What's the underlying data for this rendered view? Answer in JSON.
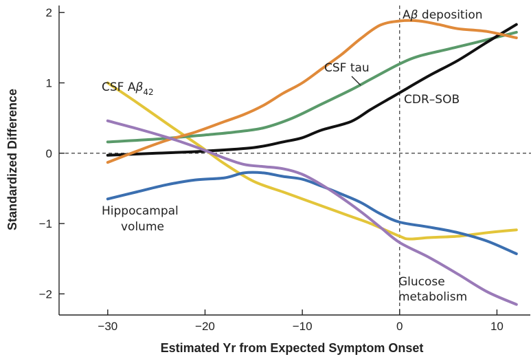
{
  "chart_data": {
    "type": "line",
    "title": "",
    "xlabel": "Estimated Yr from Expected Symptom Onset",
    "ylabel": "Standardized Difference",
    "xlim": [
      -35,
      13.5
    ],
    "ylim": [
      -2.3,
      2.1
    ],
    "xticks": [
      -30,
      -20,
      -10,
      0,
      10
    ],
    "xtick_labels": [
      "−30",
      "−20",
      "−10",
      "0",
      "10"
    ],
    "yticks": [
      2,
      1,
      0,
      -1,
      -2
    ],
    "ytick_labels": [
      "2",
      "1",
      "0",
      "−1",
      "−2"
    ],
    "reference_lines": {
      "horizontal_y": 0,
      "vertical_x": 0,
      "style": "dashed"
    },
    "grid": false,
    "series": [
      {
        "name": "CSF Aβ42",
        "color": "#e3c53a",
        "x": [
          -30,
          -27,
          -24,
          -22,
          -20,
          -18,
          -15,
          -12,
          -10,
          -8,
          -5,
          -3,
          0,
          1,
          3,
          6,
          9,
          12
        ],
        "y": [
          1.0,
          0.72,
          0.43,
          0.24,
          0.05,
          -0.15,
          -0.4,
          -0.55,
          -0.65,
          -0.75,
          -0.9,
          -1.0,
          -1.18,
          -1.22,
          -1.2,
          -1.18,
          -1.13,
          -1.09
        ]
      },
      {
        "name": "CSF tau",
        "color": "#5a9a6a",
        "x": [
          -30,
          -25,
          -20,
          -17,
          -14,
          -11,
          -8,
          -5,
          -3,
          0,
          2,
          5,
          8,
          12
        ],
        "y": [
          0.16,
          0.2,
          0.26,
          0.3,
          0.36,
          0.5,
          0.7,
          0.9,
          1.05,
          1.27,
          1.38,
          1.48,
          1.58,
          1.72
        ]
      },
      {
        "name": "CDR–SOB",
        "color": "#111111",
        "x": [
          -30,
          -25,
          -20,
          -15,
          -12,
          -10,
          -8,
          -5,
          -3,
          -1,
          0,
          3,
          6,
          9,
          12
        ],
        "y": [
          -0.03,
          0.0,
          0.03,
          0.08,
          0.16,
          0.22,
          0.33,
          0.45,
          0.62,
          0.78,
          0.86,
          1.1,
          1.32,
          1.58,
          1.83
        ]
      },
      {
        "name": "Aβ deposition",
        "color": "#e08a3a",
        "x": [
          -30,
          -27,
          -24,
          -21,
          -18,
          -16,
          -14,
          -12,
          -10,
          -8,
          -6,
          -4,
          -2,
          0,
          2,
          4,
          6,
          9,
          12
        ],
        "y": [
          -0.13,
          0.03,
          0.18,
          0.3,
          0.45,
          0.55,
          0.68,
          0.85,
          1.0,
          1.2,
          1.4,
          1.63,
          1.82,
          1.88,
          1.88,
          1.83,
          1.77,
          1.73,
          1.64
        ]
      },
      {
        "name": "Hippocampal volume",
        "color": "#3b6fb0",
        "x": [
          -30,
          -27,
          -24,
          -21,
          -18,
          -16,
          -14,
          -12,
          -10,
          -8,
          -6,
          -4,
          -2,
          0,
          3,
          6,
          9,
          12
        ],
        "y": [
          -0.65,
          -0.55,
          -0.45,
          -0.38,
          -0.35,
          -0.28,
          -0.28,
          -0.33,
          -0.37,
          -0.47,
          -0.58,
          -0.7,
          -0.86,
          -0.98,
          -1.05,
          -1.13,
          -1.25,
          -1.43
        ]
      },
      {
        "name": "Glucose metabolism",
        "color": "#9a7ab8",
        "x": [
          -30,
          -27,
          -24,
          -22,
          -20,
          -18,
          -16,
          -14,
          -12,
          -10,
          -8,
          -6,
          -4,
          -2,
          0,
          3,
          6,
          9,
          12
        ],
        "y": [
          0.46,
          0.35,
          0.23,
          0.14,
          0.04,
          -0.07,
          -0.16,
          -0.19,
          -0.22,
          -0.3,
          -0.45,
          -0.63,
          -0.83,
          -1.05,
          -1.27,
          -1.48,
          -1.72,
          -1.97,
          -2.15
        ]
      }
    ],
    "annotations": {
      "csf_abeta": {
        "prefix": "CSF A",
        "beta": "β",
        "sub": "42"
      },
      "abeta_dep": {
        "prefix": "A",
        "beta": "β",
        "suffix": " deposition"
      },
      "csf_tau": "CSF tau",
      "cdr": "CDR–SOB",
      "hippo": [
        "Hippocampal",
        "volume"
      ],
      "glucose": [
        "Glucose",
        "metabolism"
      ]
    }
  }
}
